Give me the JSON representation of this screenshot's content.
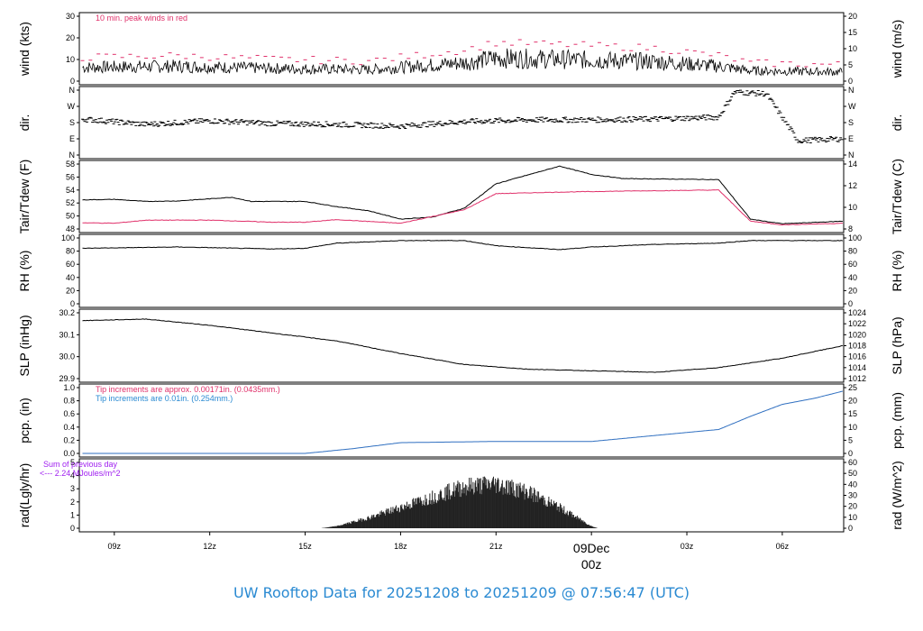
{
  "colors": {
    "axis": "#000000",
    "peak": "#e0306a",
    "tdew": "#e0306a",
    "pcp_line": "#2f6fc0",
    "blue_note": "#2a8ad2",
    "purple_note": "#a020f0",
    "footer": "#2a8ad2",
    "date": "#e0306a"
  },
  "footer": {
    "title": "UW Rooftop Data for 20251208  to  20251209 @ 07:56:47  (UTC)"
  },
  "xaxis": {
    "ticks": [
      {
        "t": 1,
        "label": "09z"
      },
      {
        "t": 4,
        "label": "12z"
      },
      {
        "t": 7,
        "label": "15z"
      },
      {
        "t": 10,
        "label": "18z"
      },
      {
        "t": 13,
        "label": "21z"
      },
      {
        "t": 16,
        "label": "00z"
      },
      {
        "t": 19,
        "label": "03z"
      },
      {
        "t": 22,
        "label": "06z"
      }
    ],
    "range_hours": [
      -0.1,
      23.93
    ],
    "date_label": "09Dec",
    "date_time": "00z"
  },
  "chart_data": [
    {
      "id": "wind",
      "type": "line",
      "ylabel_left": "wind (kts)",
      "ylabel_right": "wind (m/s)",
      "ylim": [
        0,
        35
      ],
      "left_ticks": [
        "0",
        "10",
        "20",
        "30"
      ],
      "right_ticks": [
        "0",
        "5",
        "10",
        "15",
        "20"
      ],
      "annotation": "10 min. peak winds in red",
      "series": [
        {
          "name": "10 min. peak winds",
          "points": [
            [
              0,
              12
            ],
            [
              3,
              13
            ],
            [
              6,
              11
            ],
            [
              9,
              10
            ],
            [
              12,
              16
            ],
            [
              13,
              20
            ],
            [
              15,
              19
            ],
            [
              18,
              17
            ],
            [
              20,
              13
            ],
            [
              21,
              9
            ],
            [
              23.9,
              8
            ]
          ]
        }
      ]
    },
    {
      "id": "dir",
      "type": "scatter",
      "ylabel_left": "dir.",
      "ylabel_right": "dir.",
      "left_ticks": [
        "N",
        "E",
        "S",
        "W",
        "N"
      ],
      "right_ticks": [
        "N",
        "E",
        "S",
        "W",
        "N"
      ],
      "series": [
        {
          "points": [
            [
              0,
              200
            ],
            [
              2,
              170
            ],
            [
              4,
              190
            ],
            [
              6,
              175
            ],
            [
              8,
              170
            ],
            [
              10,
              160
            ],
            [
              12,
              185
            ],
            [
              14,
              195
            ],
            [
              16,
              195
            ],
            [
              18,
              200
            ],
            [
              20,
              210
            ],
            [
              20.5,
              350
            ],
            [
              21.5,
              340
            ],
            [
              22.5,
              80
            ],
            [
              23.9,
              90
            ]
          ]
        }
      ]
    },
    {
      "id": "temp",
      "type": "line",
      "ylabel_left": "Tair/Tdew (F)",
      "ylabel_right": "Tair/Tdew (C)",
      "ylim": [
        46.5,
        59
      ],
      "left_ticks": [
        "48",
        "50",
        "52",
        "54",
        "56",
        "58"
      ],
      "right_ticks": [
        "8",
        "10",
        "12",
        "14"
      ],
      "series": [
        {
          "name": "Tair",
          "points": [
            [
              0,
              52.1
            ],
            [
              1,
              52.2
            ],
            [
              2,
              51.8
            ],
            [
              3,
              51.9
            ],
            [
              4.7,
              52.6
            ],
            [
              5.3,
              51.8
            ],
            [
              7,
              51.8
            ],
            [
              8,
              50.8
            ],
            [
              9,
              50.0
            ],
            [
              10,
              48.4
            ],
            [
              11,
              48.8
            ],
            [
              12,
              50.5
            ],
            [
              13,
              55.2
            ],
            [
              15,
              58.6
            ],
            [
              16,
              57.0
            ],
            [
              17,
              56.2
            ],
            [
              20,
              56.0
            ],
            [
              21,
              48.4
            ],
            [
              22,
              47.5
            ],
            [
              23.9,
              48.0
            ]
          ]
        },
        {
          "name": "Tdew",
          "points": [
            [
              0,
              47.7
            ],
            [
              1,
              47.6
            ],
            [
              2,
              48.2
            ],
            [
              4,
              48.2
            ],
            [
              6,
              47.8
            ],
            [
              7,
              47.8
            ],
            [
              8,
              48.3
            ],
            [
              10,
              47.6
            ],
            [
              12,
              50.2
            ],
            [
              13,
              53.3
            ],
            [
              15,
              53.6
            ],
            [
              17,
              53.8
            ],
            [
              20,
              54.0
            ],
            [
              21,
              48.0
            ],
            [
              22,
              47.3
            ],
            [
              23.9,
              47.6
            ]
          ]
        }
      ]
    },
    {
      "id": "rh",
      "type": "line",
      "ylabel_left": "RH (%)",
      "ylabel_right": "RH (%)",
      "ylim": [
        0,
        102
      ],
      "left_ticks": [
        "0",
        "20",
        "40",
        "60",
        "80",
        "100"
      ],
      "right_ticks": [
        "0",
        "20",
        "40",
        "60",
        "80",
        "100"
      ],
      "series": [
        {
          "points": [
            [
              0,
              86
            ],
            [
              3,
              88
            ],
            [
              6,
              85
            ],
            [
              7,
              86
            ],
            [
              8,
              94
            ],
            [
              10,
              98
            ],
            [
              12,
              98
            ],
            [
              13,
              90
            ],
            [
              14,
              87
            ],
            [
              15,
              84
            ],
            [
              16,
              88
            ],
            [
              18,
              92
            ],
            [
              20,
              94
            ],
            [
              21,
              98
            ],
            [
              22,
              98
            ],
            [
              23.9,
              98
            ]
          ]
        }
      ]
    },
    {
      "id": "slp",
      "type": "line",
      "ylabel_left": "SLP (inHg)",
      "ylabel_right": "SLP (hPa)",
      "ylim": [
        29.84,
        30.26
      ],
      "left_ticks": [
        "29.9",
        "30.0",
        "30.1",
        "30.2"
      ],
      "right_ticks": [
        "1012",
        "1014",
        "1016",
        "1018",
        "1020",
        "1022",
        "1024"
      ],
      "series": [
        {
          "points": [
            [
              0,
              30.21
            ],
            [
              2,
              30.22
            ],
            [
              4,
              30.18
            ],
            [
              6,
              30.13
            ],
            [
              8,
              30.08
            ],
            [
              10,
              30.0
            ],
            [
              12,
              29.93
            ],
            [
              14,
              29.9
            ],
            [
              16,
              29.89
            ],
            [
              18,
              29.88
            ],
            [
              20,
              29.91
            ],
            [
              22,
              29.97
            ],
            [
              23.9,
              30.05
            ]
          ]
        }
      ]
    },
    {
      "id": "pcp",
      "type": "line",
      "ylabel_left": "pcp. (in)",
      "ylabel_right": "pcp. (mm)",
      "ylim": [
        0,
        1.1
      ],
      "left_ticks": [
        "0.0",
        "0.2",
        "0.4",
        "0.6",
        "0.8",
        "1.0"
      ],
      "right_ticks": [
        "0",
        "5",
        "10",
        "15",
        "20",
        "25"
      ],
      "annotations": [
        "Tip increments are approx. 0.00171in. (0.0435mm.)",
        "Tip increments are 0.01in. (0.254mm.)"
      ],
      "series": [
        {
          "points": [
            [
              0,
              0
            ],
            [
              7,
              0
            ],
            [
              8.5,
              0.08
            ],
            [
              10,
              0.18
            ],
            [
              13,
              0.2
            ],
            [
              16,
              0.2
            ],
            [
              17,
              0.25
            ],
            [
              19,
              0.35
            ],
            [
              20,
              0.4
            ],
            [
              21,
              0.62
            ],
            [
              22,
              0.82
            ],
            [
              23,
              0.92
            ],
            [
              23.9,
              1.04
            ]
          ]
        }
      ]
    },
    {
      "id": "rad",
      "type": "area",
      "ylabel_left": "rad(Lgly/hr)",
      "ylabel_right": "rad (W/m^2)",
      "ylim": [
        0,
        6.2
      ],
      "left_ticks": [
        "0",
        "1",
        "2",
        "3",
        "4",
        "5"
      ],
      "right_ticks": [
        "0",
        "10",
        "20",
        "30",
        "40",
        "50",
        "60"
      ],
      "annotations": [
        "Sum of previous day",
        "<--- 2.24 MJoules/m^2"
      ],
      "series": [
        {
          "points": [
            [
              7.5,
              0
            ],
            [
              8,
              0.2
            ],
            [
              9,
              1.0
            ],
            [
              10,
              2.0
            ],
            [
              11,
              3.0
            ],
            [
              12,
              4.0
            ],
            [
              13,
              4.3
            ],
            [
              14,
              3.5
            ],
            [
              15,
              2.0
            ],
            [
              16,
              0.2
            ],
            [
              16.2,
              0
            ]
          ]
        }
      ]
    }
  ]
}
